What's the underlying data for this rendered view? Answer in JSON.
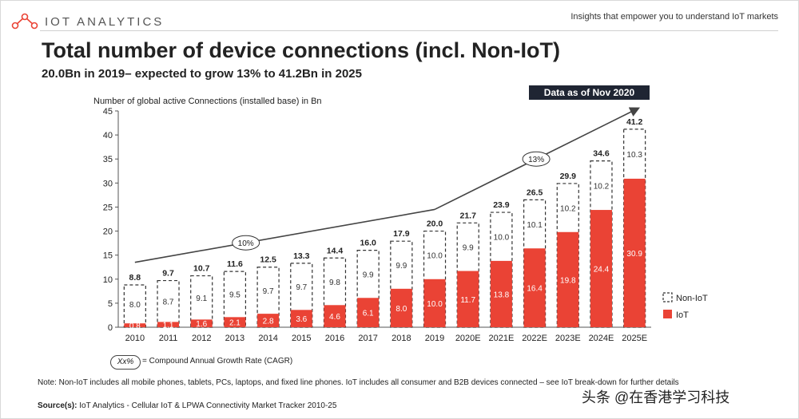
{
  "header": {
    "brand": "IOT ANALYTICS",
    "tagline": "Insights that empower you to understand IoT markets"
  },
  "title": "Total number of device connections (incl. Non-IoT)",
  "subtitle": "20.0Bn in 2019– expected to grow 13% to 41.2Bn in 2025",
  "data_badge": "Data as of Nov 2020",
  "colors": {
    "iot": "#ea4335",
    "non_iot_border": "#333333",
    "badge_bg": "#1f2533",
    "text": "#1a1a1a"
  },
  "chart_data": {
    "type": "bar",
    "stacked": true,
    "ylabel": "Number of global active Connections (installed base) in Bn",
    "ylim": [
      0,
      45
    ],
    "yticks": [
      0,
      5,
      10,
      15,
      20,
      25,
      30,
      35,
      40,
      45
    ],
    "categories": [
      "2010",
      "2011",
      "2012",
      "2013",
      "2014",
      "2015",
      "2016",
      "2017",
      "2018",
      "2019",
      "2020E",
      "2021E",
      "2022E",
      "2023E",
      "2024E",
      "2025E"
    ],
    "series": [
      {
        "name": "IoT",
        "values": [
          0.8,
          1.1,
          1.6,
          2.1,
          2.8,
          3.6,
          4.6,
          6.1,
          8.0,
          10.0,
          11.7,
          13.8,
          16.4,
          19.8,
          24.4,
          30.9
        ]
      },
      {
        "name": "Non-IoT",
        "values": [
          8.0,
          8.7,
          9.1,
          9.5,
          9.7,
          9.7,
          9.8,
          9.9,
          9.9,
          10.0,
          9.9,
          10.0,
          10.1,
          10.2,
          10.2,
          10.3
        ]
      }
    ],
    "totals": [
      8.8,
      9.7,
      10.7,
      11.6,
      12.5,
      13.3,
      14.4,
      16.0,
      17.9,
      20.0,
      21.7,
      23.9,
      26.5,
      29.9,
      34.6,
      41.2
    ],
    "labels": {
      "iot": [
        "0.8",
        "1.1",
        "1.6",
        "2.1",
        "2.8",
        "3.6",
        "4.6",
        "6.1",
        "8.0",
        "10.0",
        "11.7",
        "13.8",
        "16.4",
        "19.8",
        "24.4",
        "30.9"
      ],
      "non_iot": [
        "8.0",
        "8.7",
        "9.1",
        "9.5",
        "9.7",
        "9.7",
        "9.8",
        "9.9",
        "9.9",
        "10.0",
        "9.9",
        "10.0",
        "10.1",
        "10.2",
        "10.2",
        "10.3"
      ],
      "totals": [
        "8.8",
        "9.7",
        "10.7",
        "11.6",
        "12.5",
        "13.3",
        "14.4",
        "16.0",
        "17.9",
        "20.0",
        "21.7",
        "23.9",
        "26.5",
        "29.9",
        "34.6",
        "41.2"
      ]
    },
    "cagr_annotations": [
      {
        "label": "10%",
        "from": "2010",
        "to": "2019",
        "from_value": 13.5,
        "to_value": 24.5
      },
      {
        "label": "13%",
        "from": "2019",
        "to": "2025E",
        "from_value": 24.5,
        "to_value": 45.5
      }
    ],
    "legend": [
      "Non-IoT",
      "IoT"
    ],
    "legend_position": "right"
  },
  "cagr_legend": {
    "symbol": "Xx%",
    "text": "= Compound Annual Growth Rate (CAGR)"
  },
  "note": "Note: Non-IoT includes all mobile phones, tablets, PCs, laptops, and fixed line phones. IoT includes all consumer and B2B devices connected – see IoT break-down for further details",
  "source": {
    "label": "Source(s):",
    "text": "IoT Analytics - Cellular IoT & LPWA Connectivity Market Tracker 2010-25"
  },
  "watermark": "头条 @在香港学习科技"
}
